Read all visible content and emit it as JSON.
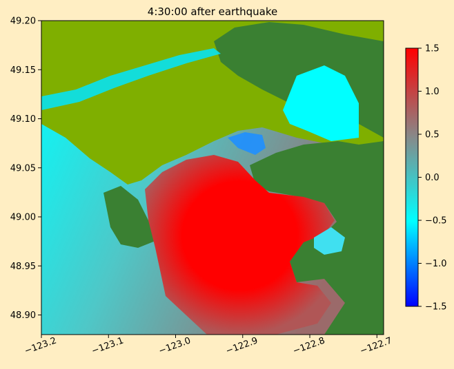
{
  "chart_data": {
    "type": "heatmap",
    "title": "4:30:00 after earthquake",
    "xlabel": "",
    "ylabel": "",
    "xlim": [
      -123.2,
      -122.69
    ],
    "ylim": [
      48.88,
      49.2
    ],
    "x_ticks": [
      -123.2,
      -123.1,
      -123.0,
      -122.9,
      -122.8,
      -122.7
    ],
    "x_tick_labels": [
      "−123.2",
      "−123.1",
      "−123.0",
      "−122.9",
      "−122.8",
      "−122.7"
    ],
    "y_ticks": [
      48.9,
      48.95,
      49.0,
      49.05,
      49.1,
      49.15,
      49.2
    ],
    "y_tick_labels": [
      "48.90",
      "48.95",
      "49.00",
      "49.05",
      "49.10",
      "49.15",
      "49.20"
    ],
    "grid": false,
    "colorbar": {
      "vmin": -1.5,
      "vmax": 1.5,
      "ticks": [
        -1.5,
        -1.0,
        -0.5,
        0.0,
        0.5,
        1.0,
        1.5
      ],
      "tick_labels": [
        "−1.5",
        "−1.0",
        "−0.5",
        "0.0",
        "0.5",
        "1.0",
        "1.5"
      ],
      "colormap": [
        "#0000ff",
        "#00ffff",
        "#888888",
        "#ff0000"
      ],
      "placement": "right"
    },
    "colors": {
      "background": "#FFEEC3",
      "land_high": "#3A8032",
      "land_low": "#7FAF00",
      "water_positive": "#ff0000",
      "water_neutral": "#00ffff",
      "water_negative": "#0000ff"
    }
  }
}
